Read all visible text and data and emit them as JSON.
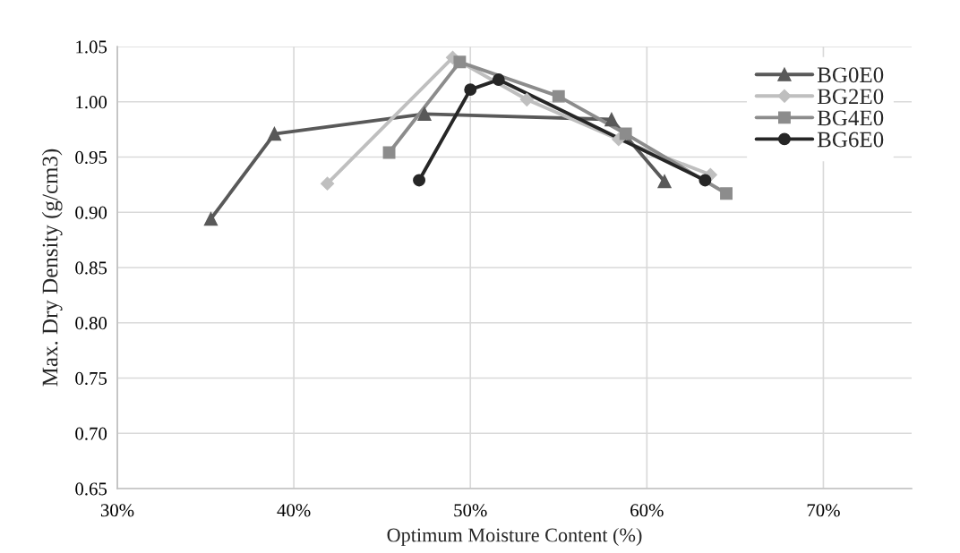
{
  "chart_data": {
    "type": "line",
    "xlabel": "Optimum Moisture Content (%)",
    "ylabel": "Max. Dry Density (g/cm3)",
    "xlim": [
      30,
      75
    ],
    "xticks": [
      {
        "value": 30,
        "label": "30%"
      },
      {
        "value": 40,
        "label": "40%"
      },
      {
        "value": 50,
        "label": "50%"
      },
      {
        "value": 60,
        "label": "60%"
      },
      {
        "value": 70,
        "label": "70%"
      }
    ],
    "ylim": [
      0.65,
      1.05
    ],
    "yticks": [
      {
        "value": 0.65,
        "label": "0.65"
      },
      {
        "value": 0.7,
        "label": "0.70"
      },
      {
        "value": 0.75,
        "label": "0.75"
      },
      {
        "value": 0.8,
        "label": "0.80"
      },
      {
        "value": 0.85,
        "label": "0.85"
      },
      {
        "value": 0.9,
        "label": "0.90"
      },
      {
        "value": 0.95,
        "label": "0.95"
      },
      {
        "value": 1.0,
        "label": "1.00"
      },
      {
        "value": 1.05,
        "label": "1.05"
      }
    ],
    "grid": true,
    "legend": "top right",
    "line_style": "solid",
    "series": [
      {
        "name": "BG0E0",
        "color": "#595959",
        "marker": "triangle",
        "x": [
          35.3,
          38.9,
          47.4,
          58.0,
          61.0
        ],
        "values": [
          0.894,
          0.971,
          0.989,
          0.984,
          0.928
        ]
      },
      {
        "name": "BG2E0",
        "color": "#bfbfbf",
        "marker": "diamond",
        "x": [
          41.9,
          49.0,
          53.2,
          58.4,
          63.6
        ],
        "values": [
          0.926,
          1.04,
          1.002,
          0.966,
          0.934
        ]
      },
      {
        "name": "BG4E0",
        "color": "#8c8c8c",
        "marker": "square",
        "x": [
          45.4,
          49.4,
          55.0,
          58.8,
          64.5
        ],
        "values": [
          0.954,
          1.036,
          1.005,
          0.971,
          0.917
        ]
      },
      {
        "name": "BG6E0",
        "color": "#262626",
        "marker": "circle",
        "x": [
          47.1,
          50.0,
          51.6,
          63.3
        ],
        "values": [
          0.929,
          1.011,
          1.02,
          0.929
        ]
      }
    ]
  }
}
